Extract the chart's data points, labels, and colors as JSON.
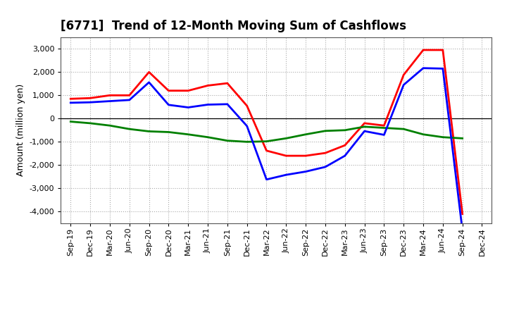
{
  "title": "[6771]  Trend of 12-Month Moving Sum of Cashflows",
  "ylabel": "Amount (million yen)",
  "background_color": "#ffffff",
  "plot_bg_color": "#ffffff",
  "grid_color": "#aaaaaa",
  "ylim": [
    -4500,
    3500
  ],
  "yticks": [
    -4000,
    -3000,
    -2000,
    -1000,
    0,
    1000,
    2000,
    3000
  ],
  "x_labels": [
    "Sep-19",
    "Dec-19",
    "Mar-20",
    "Jun-20",
    "Sep-20",
    "Dec-20",
    "Mar-21",
    "Jun-21",
    "Sep-21",
    "Dec-21",
    "Mar-22",
    "Jun-22",
    "Sep-22",
    "Dec-22",
    "Mar-23",
    "Jun-23",
    "Sep-23",
    "Dec-23",
    "Mar-24",
    "Jun-24",
    "Sep-24",
    "Dec-24"
  ],
  "operating": [
    850,
    880,
    1000,
    1000,
    2000,
    1200,
    1200,
    1420,
    1520,
    550,
    -1380,
    -1600,
    -1600,
    -1480,
    -1150,
    -200,
    -300,
    1880,
    2950,
    2950,
    -4100,
    null
  ],
  "investing": [
    -130,
    -200,
    -300,
    -450,
    -550,
    -580,
    -680,
    -800,
    -950,
    -1000,
    -980,
    -850,
    -680,
    -530,
    -500,
    -350,
    -400,
    -450,
    -680,
    -800,
    -850,
    null
  ],
  "free": [
    680,
    700,
    750,
    800,
    1560,
    590,
    480,
    600,
    620,
    -320,
    -2620,
    -2420,
    -2280,
    -2080,
    -1600,
    -540,
    -700,
    1450,
    2170,
    2150,
    -4800,
    null
  ],
  "op_color": "#ff0000",
  "inv_color": "#008000",
  "free_color": "#0000ff",
  "line_width": 2.0,
  "title_fontsize": 12,
  "axis_label_fontsize": 9,
  "tick_fontsize": 8,
  "legend_fontsize": 9
}
